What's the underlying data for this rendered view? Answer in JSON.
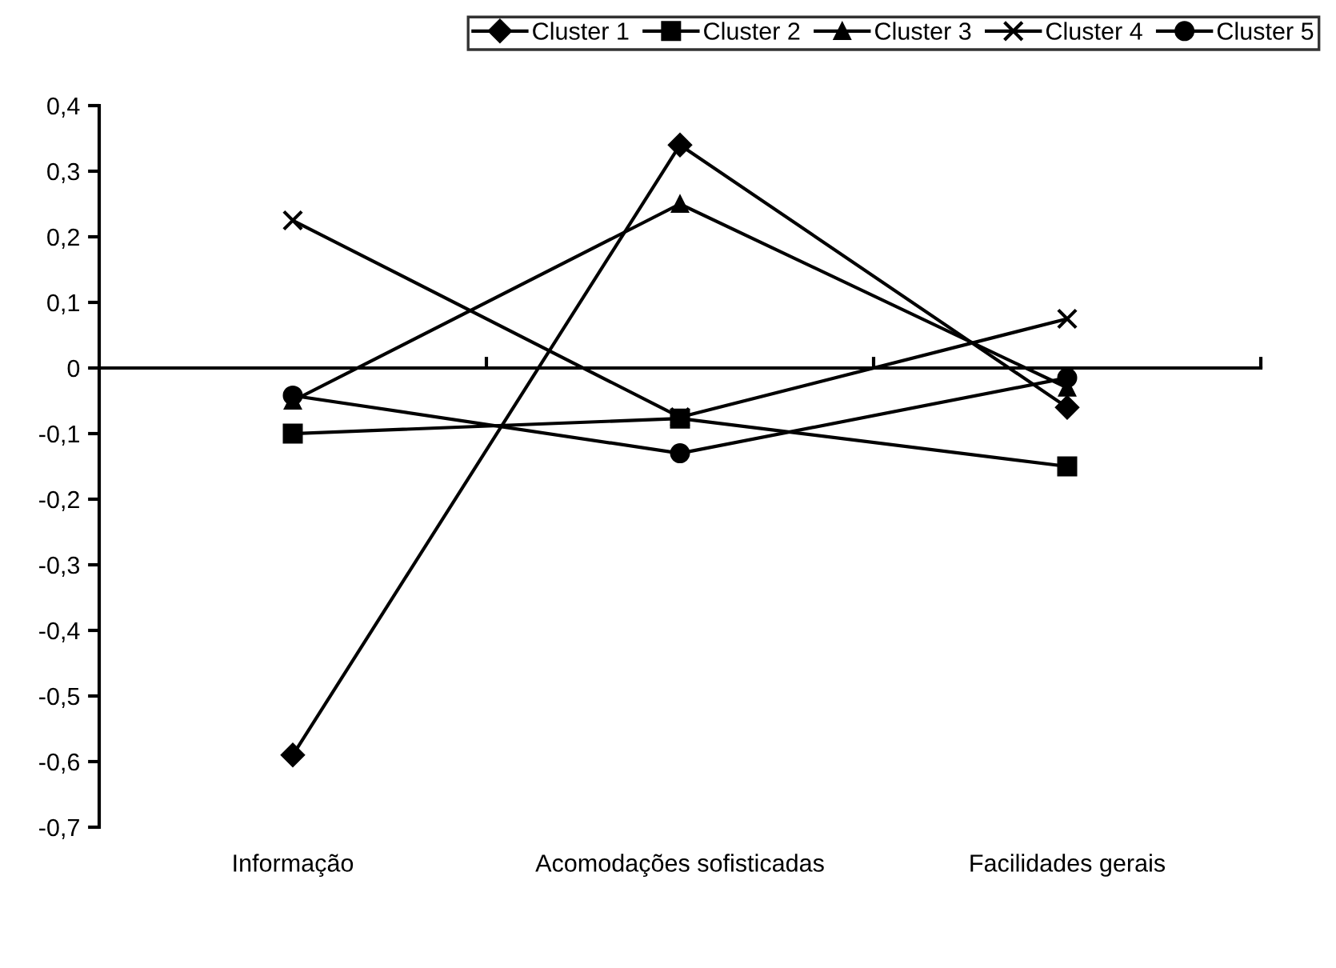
{
  "chart_data": {
    "type": "line",
    "categories": [
      "Informação",
      "Acomodações sofisticadas",
      "Facilidades gerais"
    ],
    "series": [
      {
        "name": "Cluster 1",
        "color": "#000000",
        "marker": "diamond",
        "values": [
          -0.59,
          0.34,
          -0.06
        ]
      },
      {
        "name": "Cluster 2",
        "color": "#000000",
        "marker": "square",
        "values": [
          -0.1,
          -0.077,
          -0.15
        ]
      },
      {
        "name": "Cluster 3",
        "color": "#000000",
        "marker": "triangle",
        "values": [
          -0.05,
          0.25,
          -0.03
        ]
      },
      {
        "name": "Cluster 4",
        "color": "#000000",
        "marker": "cross",
        "values": [
          0.225,
          -0.075,
          0.075
        ]
      },
      {
        "name": "Cluster 5",
        "color": "#000000",
        "marker": "circle",
        "values": [
          -0.042,
          -0.13,
          -0.015
        ]
      }
    ],
    "ylim": [
      -0.7,
      0.4
    ],
    "yticks": [
      {
        "value": 0.4,
        "label": "0,4"
      },
      {
        "value": 0.3,
        "label": "0,3"
      },
      {
        "value": 0.2,
        "label": "0,2"
      },
      {
        "value": 0.1,
        "label": "0,1"
      },
      0,
      {
        "value": -0.1,
        "label": "-0,1"
      },
      {
        "value": -0.2,
        "label": "-0,2"
      },
      {
        "value": -0.3,
        "label": "-0,3"
      },
      {
        "value": -0.4,
        "label": "-0,4"
      },
      {
        "value": -0.5,
        "label": "-0,5"
      },
      {
        "value": -0.6,
        "label": "-0,6"
      },
      {
        "value": -0.7,
        "label": "-0,7"
      }
    ],
    "legend": "top right",
    "line_style": "solid"
  }
}
